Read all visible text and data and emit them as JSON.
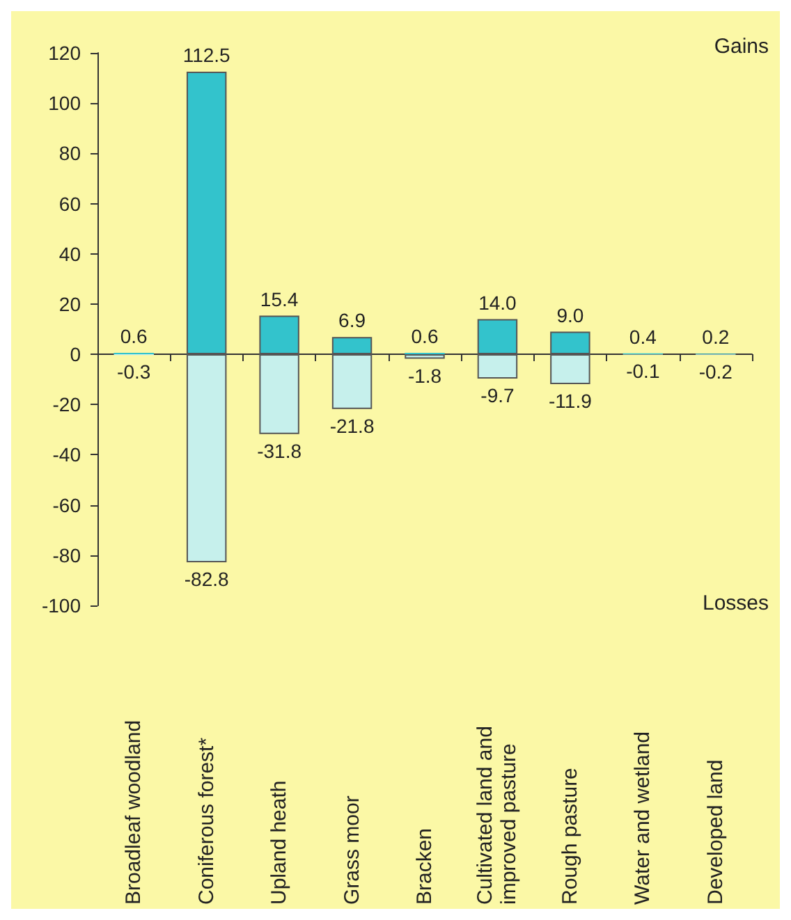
{
  "chart_data": {
    "type": "bar",
    "stacked": true,
    "categories": [
      "Broadleaf woodland",
      "Coniferous forest*",
      "Upland heath",
      "Grass moor",
      "Bracken",
      "Cultivated land and improved pasture",
      "Rough pasture",
      "Water and wetland",
      "Developed land"
    ],
    "series": [
      {
        "color": "#33c3cc",
        "values": [
          0.6,
          112.5,
          15.4,
          6.9,
          0.6,
          14.0,
          9.0,
          0.4,
          0.2
        ],
        "value_labels": [
          "0.6",
          "112.5",
          "15.4",
          "6.9",
          "0.6",
          "14.0",
          "9.0",
          "0.4",
          "0.2"
        ]
      },
      {
        "color": "#c6f0ec",
        "values": [
          -0.3,
          -82.8,
          -31.8,
          -21.8,
          -1.8,
          -9.7,
          -11.9,
          -0.1,
          -0.2
        ],
        "value_labels": [
          "-0.3",
          "-82.8",
          "-31.8",
          "-21.8",
          "-1.8",
          "-9.7",
          "-11.9",
          "-0.1",
          "-0.2"
        ]
      }
    ],
    "ylim": [
      -100,
      120
    ],
    "yticks": [
      -100,
      -80,
      -60,
      -40,
      -20,
      0,
      20,
      40,
      60,
      80,
      100,
      120
    ],
    "annotations": [
      "Gains",
      "Losses"
    ]
  }
}
